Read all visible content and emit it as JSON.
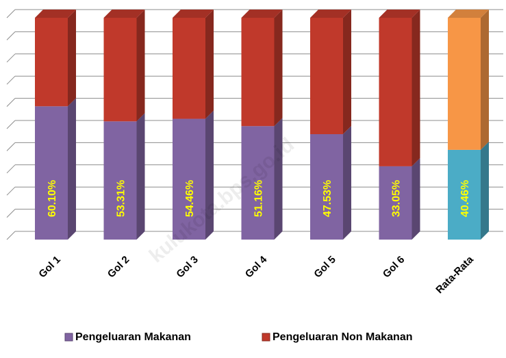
{
  "chart_data": {
    "type": "bar",
    "stacked": true,
    "categories": [
      "Gol 1",
      "Gol 2",
      "Gol 3",
      "Gol 4",
      "Gol 5",
      "Gol 6",
      "Rata-Rata"
    ],
    "series": [
      {
        "name": "Pengeluaran Makanan",
        "color": "#8064a2",
        "colors": [
          "#8064a2",
          "#8064a2",
          "#8064a2",
          "#8064a2",
          "#8064a2",
          "#8064a2",
          "#4bacc6"
        ],
        "values": [
          60.1,
          53.31,
          54.46,
          51.16,
          47.53,
          33.05,
          40.46
        ],
        "value_labels": [
          "60.10%",
          "53.31%",
          "54.46%",
          "51.16%",
          "47.53%",
          "33.05%",
          "40.46%"
        ]
      },
      {
        "name": "Pengeluaran Non Makanan",
        "color": "#c0392b",
        "colors": [
          "#c0392b",
          "#c0392b",
          "#c0392b",
          "#c0392b",
          "#c0392b",
          "#c0392b",
          "#f79646"
        ],
        "values": [
          39.9,
          46.69,
          45.54,
          48.84,
          52.47,
          66.95,
          59.54
        ]
      }
    ],
    "ylim": [
      0,
      100
    ],
    "yticks": [
      0,
      10,
      20,
      30,
      40,
      50,
      60,
      70,
      80,
      90,
      100
    ],
    "grid": true,
    "legend": "bottom",
    "watermark": "kulukota.bps.go.id"
  }
}
